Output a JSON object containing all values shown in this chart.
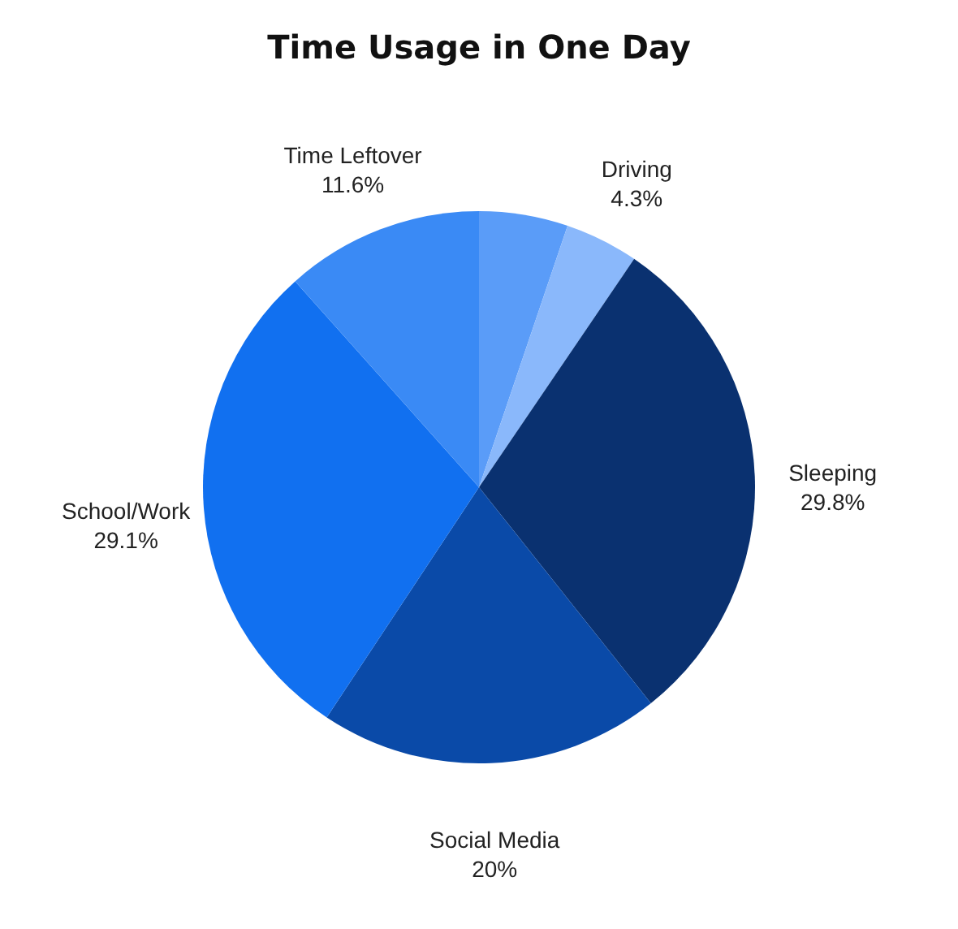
{
  "chart_data": {
    "type": "pie",
    "title": "Time Usage in One Day",
    "categories": [
      null,
      "Driving",
      "Sleeping",
      "Social Media",
      "School/Work",
      "Time Leftover"
    ],
    "values": [
      5.2,
      4.3,
      29.8,
      20,
      29.1,
      11.6
    ],
    "value_labels": [
      null,
      "4.3%",
      "29.8%",
      "20%",
      "29.1%",
      "11.6%"
    ],
    "colors": [
      "#5a9cf8",
      "#8ab8fb",
      "#0a3170",
      "#0a4aa8",
      "#1170f0",
      "#3a8af5"
    ],
    "legend": false
  }
}
